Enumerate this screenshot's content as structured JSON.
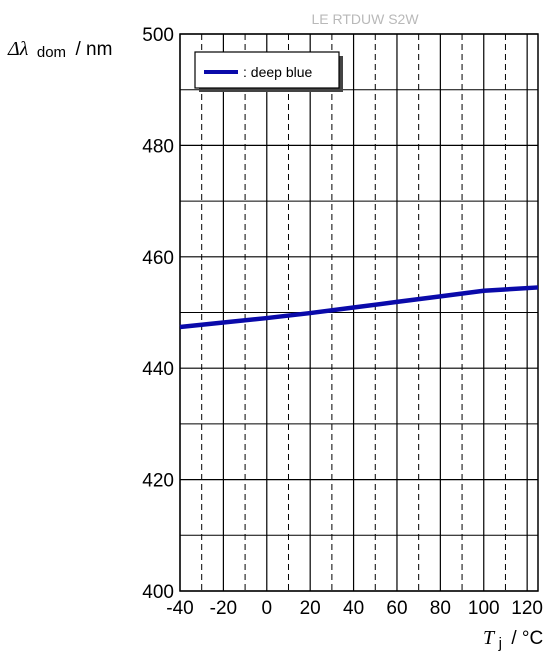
{
  "chart_data": {
    "type": "line",
    "watermark": "LE RTDUW S2W",
    "ylabel": {
      "symbol": "Δλ",
      "subscript": "dom",
      "unit": "/ nm"
    },
    "xlabel": {
      "symbol": "T",
      "subscript": "j",
      "unit": "/ °C"
    },
    "xlim": [
      -40,
      125
    ],
    "ylim": [
      400,
      500
    ],
    "x_ticks": [
      -40,
      -20,
      0,
      20,
      40,
      60,
      80,
      100,
      120
    ],
    "y_ticks": [
      400,
      420,
      440,
      460,
      480,
      500
    ],
    "x_minor_grid": [
      -30,
      -10,
      10,
      30,
      50,
      70,
      90,
      110
    ],
    "y_minor_grid": [
      410,
      430,
      450,
      470,
      490
    ],
    "grid": true,
    "legend": {
      "position": "top-left",
      "entries": [
        ": deep blue"
      ]
    },
    "series": [
      {
        "name": "deep blue",
        "color": "#0a0aaa",
        "x": [
          -40,
          -20,
          0,
          20,
          40,
          60,
          80,
          100,
          125
        ],
        "y": [
          447.4,
          448.2,
          449.0,
          449.9,
          450.9,
          451.9,
          452.9,
          453.9,
          454.5
        ]
      }
    ]
  }
}
